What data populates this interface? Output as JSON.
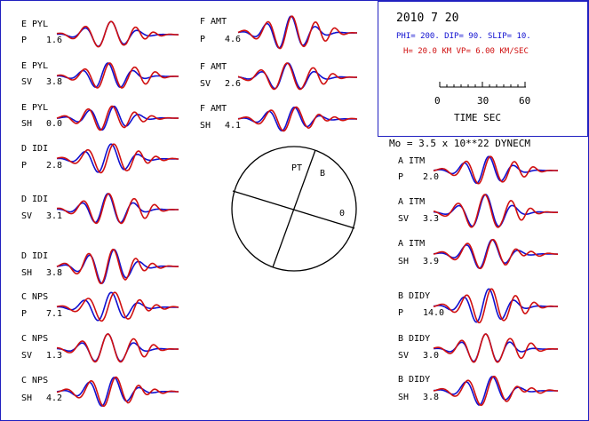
{
  "header": {
    "date": "2010  7 20",
    "mechanism": "PHI= 200. DIP= 90. SLIP=  10.",
    "depth_vel": "H= 20.0 KM  VP= 6.00 KM/SEC",
    "scale_ticks": [
      "0",
      "30",
      "60"
    ],
    "scale_label": "TIME  SEC",
    "moment": "Mo =  3.5 x 10**22 DYNECM"
  },
  "beachball": {
    "labels": [
      "P",
      "T",
      "B",
      "0"
    ]
  },
  "colors": {
    "observed": "#1010d0",
    "synthetic": "#d01010"
  },
  "traces": [
    {
      "station": "E PYL",
      "comp": "P",
      "amp": "1.6"
    },
    {
      "station": "E PYL",
      "comp": "SV",
      "amp": "3.8"
    },
    {
      "station": "E PYL",
      "comp": "SH",
      "amp": "0.0"
    },
    {
      "station": "D IDI",
      "comp": "P",
      "amp": "2.8"
    },
    {
      "station": "D IDI",
      "comp": "SV",
      "amp": "3.1"
    },
    {
      "station": "D IDI",
      "comp": "SH",
      "amp": "3.8"
    },
    {
      "station": "C NPS",
      "comp": "P",
      "amp": "7.1"
    },
    {
      "station": "C NPS",
      "comp": "SV",
      "amp": "1.3"
    },
    {
      "station": "C NPS",
      "comp": "SH",
      "amp": "4.2"
    },
    {
      "station": "F AMT",
      "comp": "P",
      "amp": "4.6"
    },
    {
      "station": "F AMT",
      "comp": "SV",
      "amp": "2.6"
    },
    {
      "station": "F AMT",
      "comp": "SH",
      "amp": "4.1"
    },
    {
      "station": "A ITM",
      "comp": "P",
      "amp": "2.0"
    },
    {
      "station": "A ITM",
      "comp": "SV",
      "amp": "3.3"
    },
    {
      "station": "A ITM",
      "comp": "SH",
      "amp": "3.9"
    },
    {
      "station": "B DIDY",
      "comp": "P",
      "amp": "14.0"
    },
    {
      "station": "B DIDY",
      "comp": "SV",
      "amp": "3.0"
    },
    {
      "station": "B DIDY",
      "comp": "SH",
      "amp": "3.8"
    }
  ]
}
